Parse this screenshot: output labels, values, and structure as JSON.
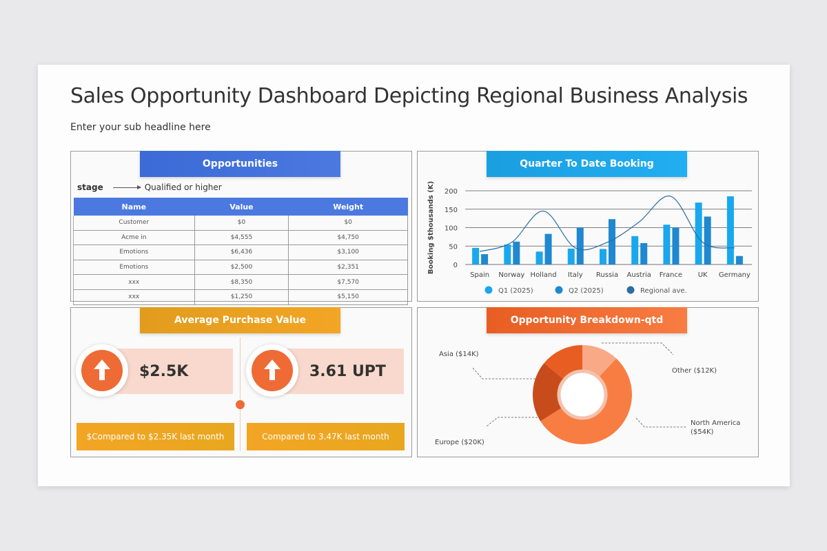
{
  "title": "Sales Opportunity Dashboard Depicting Regional Business Analysis",
  "subtitle": "Enter your sub headline here",
  "opportunities": {
    "header": "Opportunities",
    "stage_label": "stage",
    "stage_value": "Qualified or higher",
    "columns": [
      "Name",
      "Value",
      "Weight"
    ],
    "rows": [
      [
        "Customer",
        "$0",
        "$0"
      ],
      [
        "Acme in",
        "$4,555",
        "$4,750"
      ],
      [
        "Emotions",
        "$6,436",
        "$3,100"
      ],
      [
        "Emotions",
        "$2,500",
        "$2,351"
      ],
      [
        "xxx",
        "$8,350",
        "$7,570"
      ],
      [
        "xxx",
        "$1,250",
        "$5,150"
      ]
    ]
  },
  "booking": {
    "header": "Quarter To Date Booking"
  },
  "avg_purchase": {
    "header": "Average Purchase Value",
    "kpi1_value": "$2.5K",
    "kpi1_compare": "$Compared to $2.35K last month",
    "kpi2_value": "3.61 UPT",
    "kpi2_compare": "Compared to 3.47K last month",
    "colors": {
      "accent": "#ee6b35",
      "bar": "#f9d9cd"
    }
  },
  "breakdown": {
    "header": "Opportunity Breakdown-qtd"
  },
  "chart_data": [
    {
      "type": "bar",
      "title": "Quarter To Date Booking",
      "ylabel": "Booking $thousands (K)",
      "xlabel": "",
      "ylim": [
        0,
        200
      ],
      "yticks": [
        0,
        50,
        100,
        150,
        200
      ],
      "categories": [
        "Spain",
        "Norway",
        "Holland",
        "Italy",
        "Russia",
        "Austria",
        "France",
        "UK",
        "Germany"
      ],
      "series": [
        {
          "name": "Q1 (2025)",
          "color": "#1aa7ee",
          "values": [
            45,
            54,
            35,
            43,
            42,
            77,
            108,
            168,
            185
          ]
        },
        {
          "name": "Q2 (2025)",
          "color": "#1f88cf",
          "values": [
            28,
            62,
            83,
            100,
            123,
            58,
            100,
            130,
            23
          ]
        },
        {
          "name": "Regional ave.",
          "color": "#2a6ea3",
          "type": "line",
          "values": [
            35,
            60,
            145,
            45,
            60,
            115,
            185,
            60,
            45
          ]
        }
      ],
      "legend": "bottom",
      "grid": true
    },
    {
      "type": "pie",
      "title": "Opportunity Breakdown-qtd",
      "labels": [
        "Other ($12K)",
        "North America ($54K)",
        "Europe ($20K)",
        "Asia ($14K)"
      ],
      "values": [
        12,
        54,
        20,
        14
      ],
      "colors": [
        "#f9a985",
        "#f87d43",
        "#c84b1c",
        "#e85d22"
      ]
    }
  ]
}
